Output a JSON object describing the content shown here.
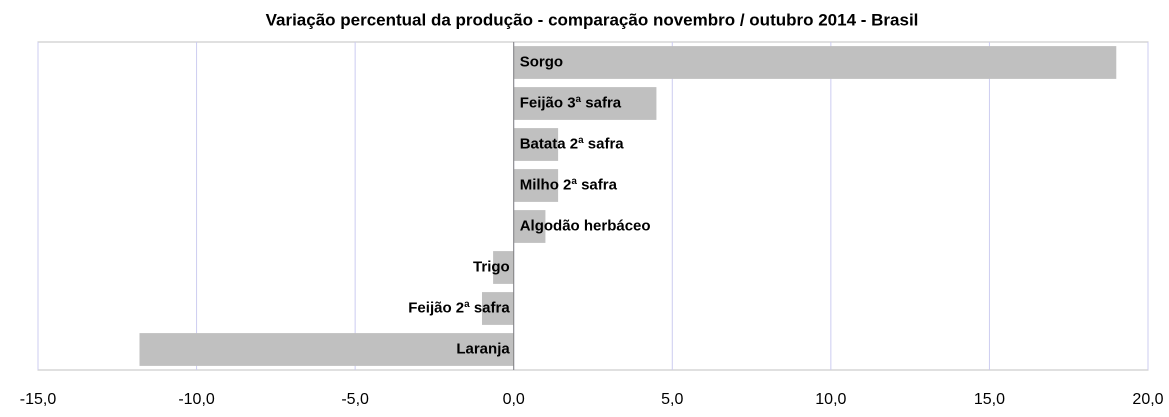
{
  "chart_data": {
    "type": "bar",
    "orientation": "horizontal",
    "title": "Variação percentual da produção - comparação novembro / outubro 2014 - Brasil",
    "categories": [
      "Sorgo",
      "Feijão 3ª safra",
      "Batata 2ª safra",
      "Milho 2ª safra",
      "Algodão herbáceo",
      "Trigo",
      "Feijão 2ª safra",
      "Laranja"
    ],
    "values": [
      19.0,
      4.5,
      1.4,
      1.4,
      1.0,
      -0.65,
      -1.0,
      -11.8
    ],
    "color": "#c0c0c0",
    "xlim": [
      -15,
      20
    ],
    "xticks": [
      {
        "value": -15,
        "label": "-15,0"
      },
      {
        "value": -10,
        "label": "-10,0"
      },
      {
        "value": -5,
        "label": "-5,0"
      },
      {
        "value": 0,
        "label": "0,0"
      },
      {
        "value": 5,
        "label": "5,0"
      },
      {
        "value": 10,
        "label": "10,0"
      },
      {
        "value": 15,
        "label": "15,0"
      },
      {
        "value": 20,
        "label": "20,0"
      }
    ],
    "grid": true
  }
}
